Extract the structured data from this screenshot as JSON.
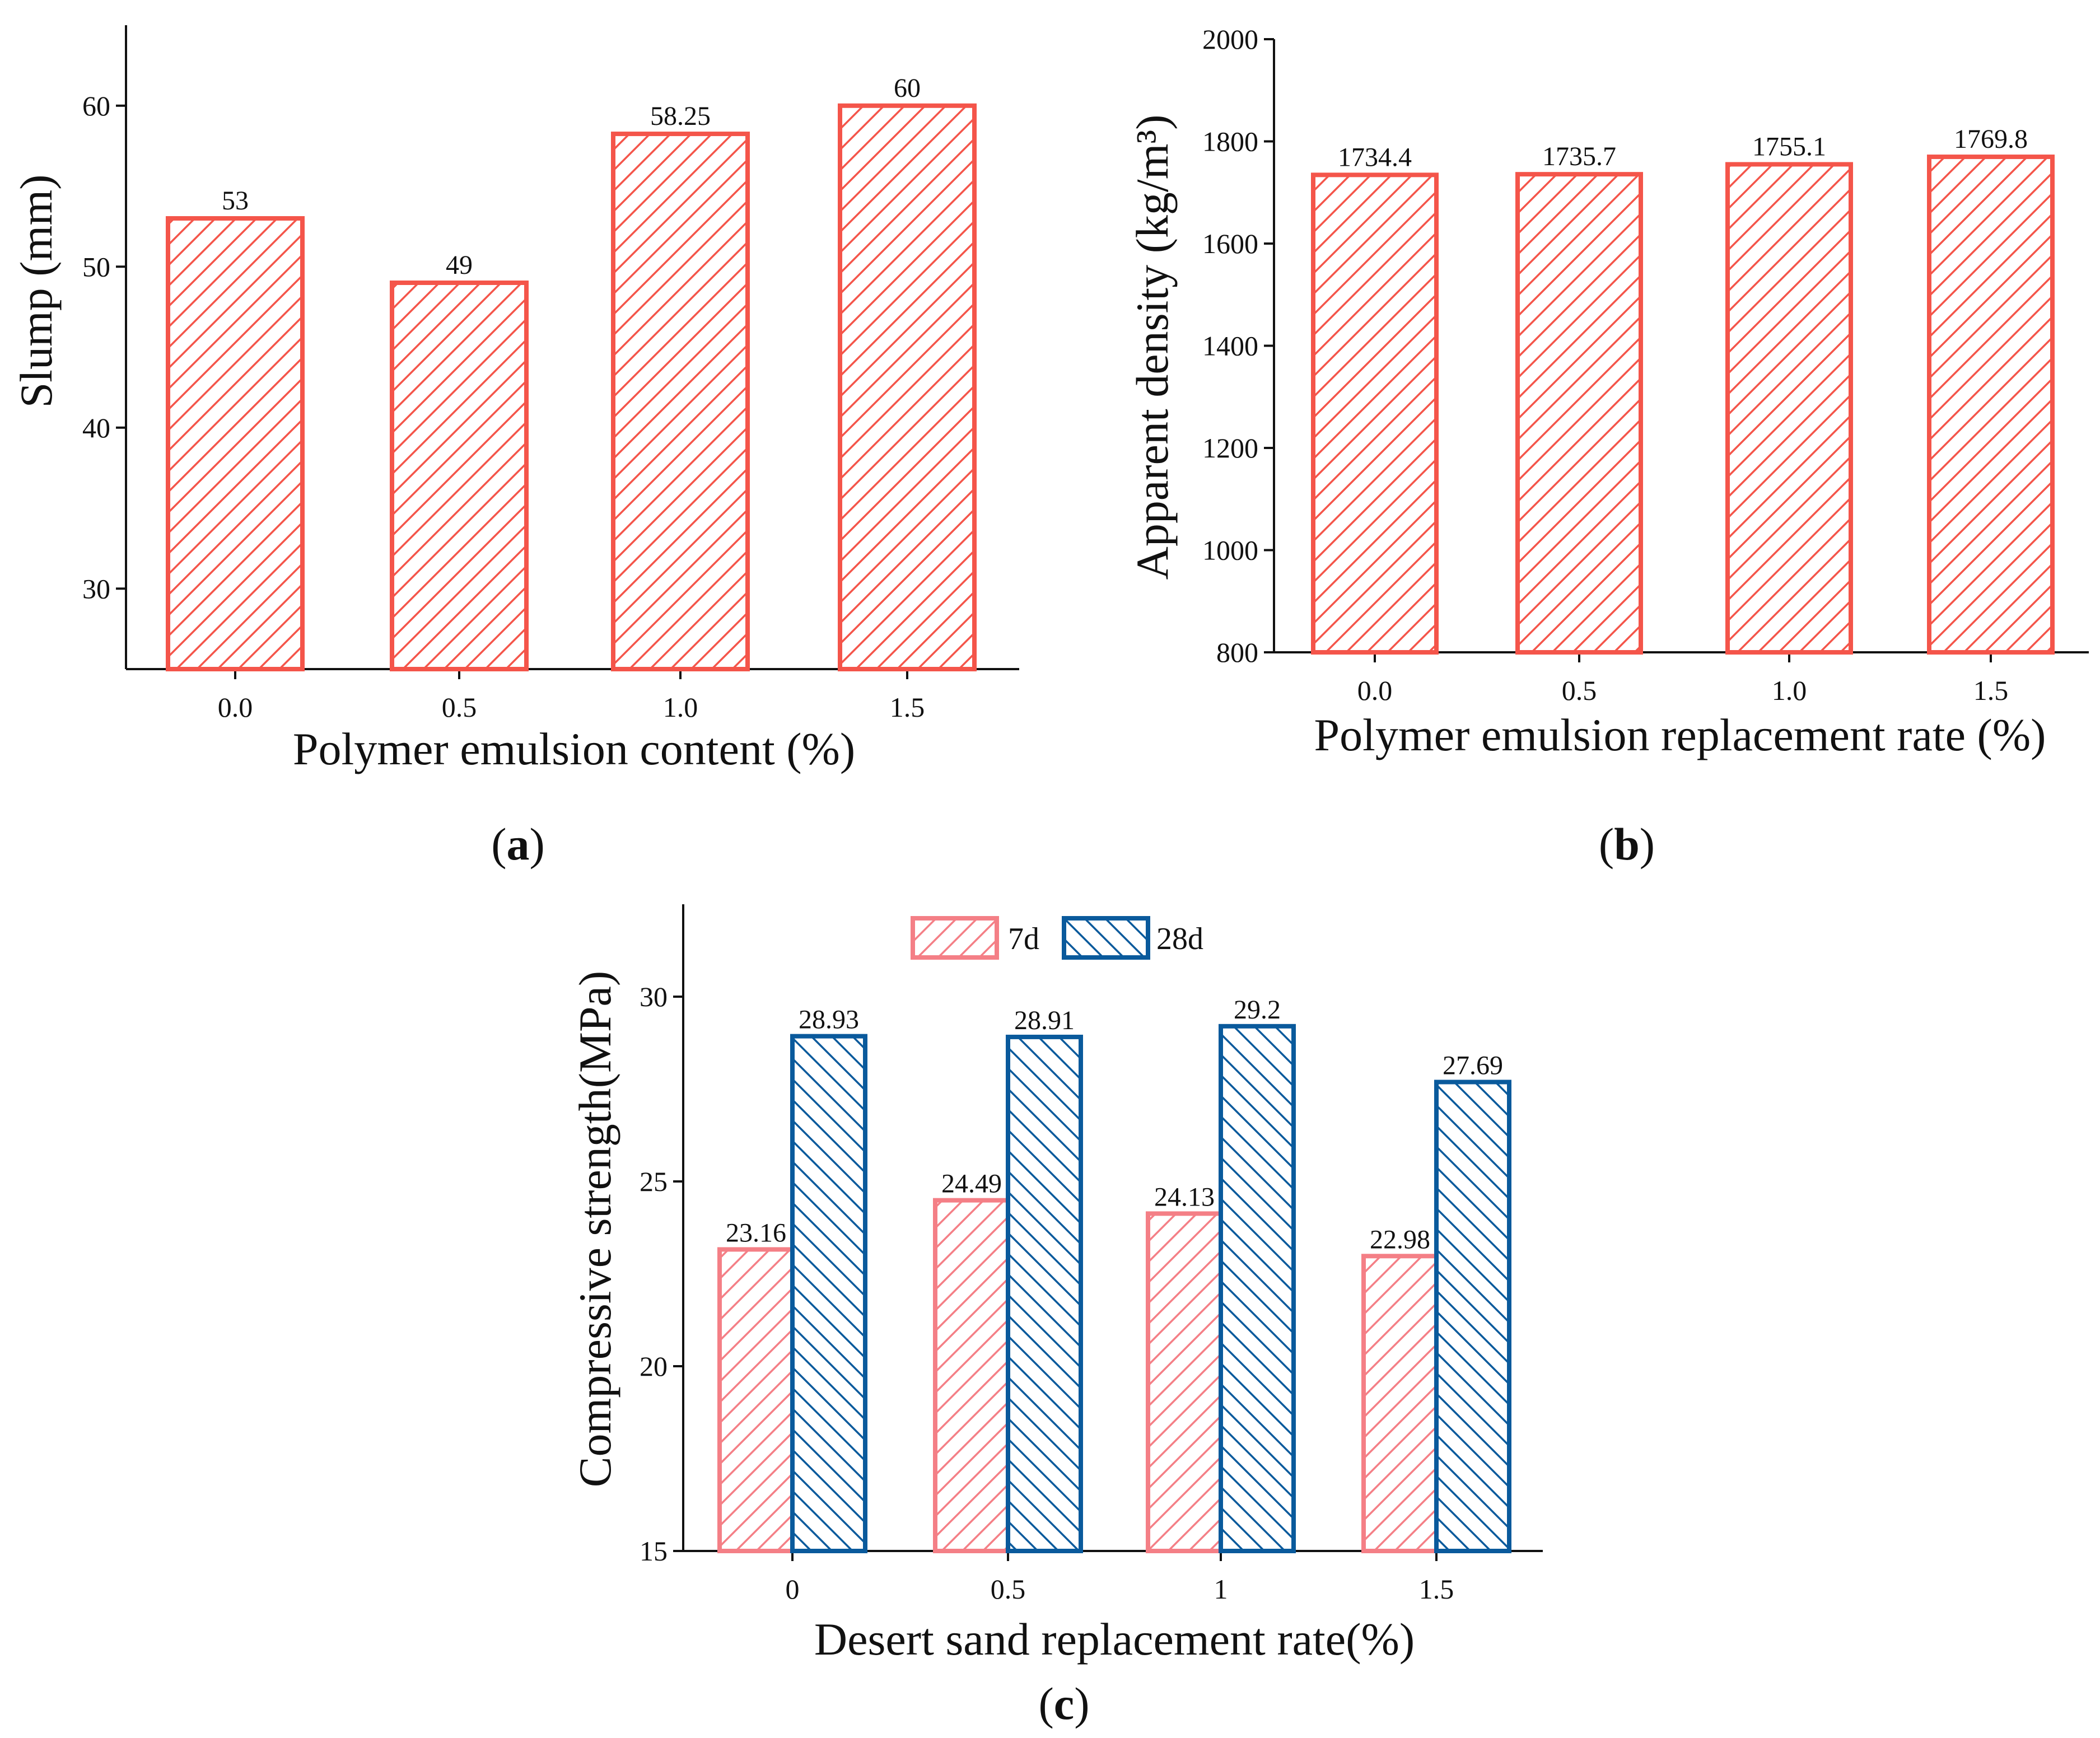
{
  "colors": {
    "red_stroke": "#f4554a",
    "red_hatch": "#f4554a",
    "pink_stroke": "#f47f86",
    "pink_hatch": "#f47f86",
    "blue_stroke": "#0a5a9c",
    "blue_hatch": "#0a5a9c",
    "axis": "#111111"
  },
  "chart_data": [
    {
      "id": "a",
      "type": "bar",
      "panel_tag": "(a)",
      "panel_tag_letter": "a",
      "xlabel": "Polymer emulsion content (%)",
      "ylabel": "Slump (mm)",
      "categories": [
        "0.0",
        "0.5",
        "1.0",
        "1.5"
      ],
      "values": [
        53,
        49,
        58.25,
        60
      ],
      "value_labels": [
        "53",
        "49",
        "58.25",
        "60"
      ],
      "ylim": [
        25,
        65
      ],
      "yticks": [
        30,
        40,
        50,
        60
      ],
      "ytick_labels": [
        "30",
        "40",
        "50",
        "60"
      ],
      "hatch": "forward"
    },
    {
      "id": "b",
      "type": "bar",
      "panel_tag": "(b)",
      "panel_tag_letter": "b",
      "xlabel": "Polymer emulsion replacement rate (%)",
      "ylabel": "Apparent density (kg/m³)",
      "categories": [
        "0.0",
        "0.5",
        "1.0",
        "1.5"
      ],
      "values": [
        1734.4,
        1735.7,
        1755.1,
        1769.8
      ],
      "value_labels": [
        "1734.4",
        "1735.7",
        "1755.1",
        "1769.8"
      ],
      "ylim": [
        800,
        2000
      ],
      "yticks": [
        800,
        1000,
        1200,
        1400,
        1600,
        1800,
        2000
      ],
      "ytick_labels": [
        "800",
        "1000",
        "1200",
        "1400",
        "1600",
        "1800",
        "2000"
      ],
      "hatch": "forward"
    },
    {
      "id": "c",
      "type": "bar",
      "panel_tag": "(c)",
      "panel_tag_letter": "c",
      "xlabel": "Desert sand replacement rate(%)",
      "ylabel": "Compressive strength(MPa)",
      "categories": [
        "0",
        "0.5",
        "1",
        "1.5"
      ],
      "series": [
        {
          "name": "7d",
          "values": [
            23.16,
            24.49,
            24.13,
            22.98
          ],
          "value_labels": [
            "23.16",
            "24.49",
            "24.13",
            "22.98"
          ],
          "hatch": "forward"
        },
        {
          "name": "28d",
          "values": [
            28.93,
            28.91,
            29.2,
            27.69
          ],
          "value_labels": [
            "28.93",
            "28.91",
            "29.2",
            "27.69"
          ],
          "hatch": "backward"
        }
      ],
      "ylim": [
        15,
        32.5
      ],
      "yticks": [
        15,
        20,
        25,
        30
      ],
      "ytick_labels": [
        "15",
        "20",
        "25",
        "30"
      ],
      "legend_position": "top-center"
    }
  ]
}
